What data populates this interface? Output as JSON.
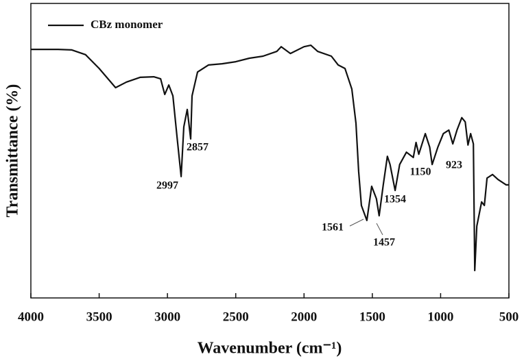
{
  "chart_data": {
    "type": "line",
    "x_label": "Wavenumber (cm⁻¹)",
    "y_label": "Transmittance (%)",
    "xlim": [
      4000,
      500
    ],
    "ylim": [
      0,
      100
    ],
    "xticks": [
      4000,
      3500,
      3000,
      2500,
      2000,
      1500,
      1000,
      500
    ],
    "legend": "upper left",
    "series": [
      {
        "name": "CBz monomer",
        "color": "#111111",
        "x": [
          4000,
          3800,
          3700,
          3600,
          3500,
          3380,
          3300,
          3200,
          3100,
          3050,
          3020,
          2990,
          2960,
          2930,
          2900,
          2880,
          2855,
          2830,
          2820,
          2780,
          2700,
          2600,
          2500,
          2400,
          2300,
          2200,
          2167,
          2100,
          2000,
          1950,
          1900,
          1800,
          1750,
          1700,
          1650,
          1620,
          1600,
          1580,
          1540,
          1505,
          1470,
          1450,
          1420,
          1390,
          1370,
          1333,
          1300,
          1250,
          1200,
          1180,
          1160,
          1112,
          1080,
          1062,
          1020,
          980,
          940,
          911,
          880,
          845,
          820,
          800,
          780,
          760,
          750,
          735,
          700,
          680,
          660,
          620,
          580,
          520,
          500
        ],
        "values": [
          84.4,
          84.4,
          84.2,
          82.6,
          77.9,
          71.4,
          73.3,
          74.9,
          75.1,
          74.4,
          69.1,
          72.3,
          68.6,
          54.7,
          41.2,
          58.1,
          64.0,
          54.0,
          68.6,
          76.7,
          79.1,
          79.5,
          80.2,
          81.4,
          82.1,
          83.7,
          85.3,
          83.0,
          85.3,
          85.8,
          83.7,
          82.1,
          79.1,
          77.9,
          70.9,
          59.3,
          43.0,
          31.4,
          26.3,
          37.9,
          33.7,
          27.9,
          38.4,
          48.1,
          45.3,
          36.5,
          45.3,
          49.5,
          47.7,
          52.8,
          48.8,
          55.8,
          51.2,
          45.3,
          51.2,
          55.8,
          57.0,
          52.3,
          57.0,
          61.2,
          59.8,
          51.9,
          55.8,
          52.3,
          9.3,
          24.4,
          32.6,
          31.4,
          40.7,
          41.9,
          40.2,
          38.4,
          38.4
        ]
      }
    ],
    "annotations": [
      "2997",
      "2857",
      "1561",
      "1457",
      "1354",
      "1150",
      "923"
    ]
  }
}
